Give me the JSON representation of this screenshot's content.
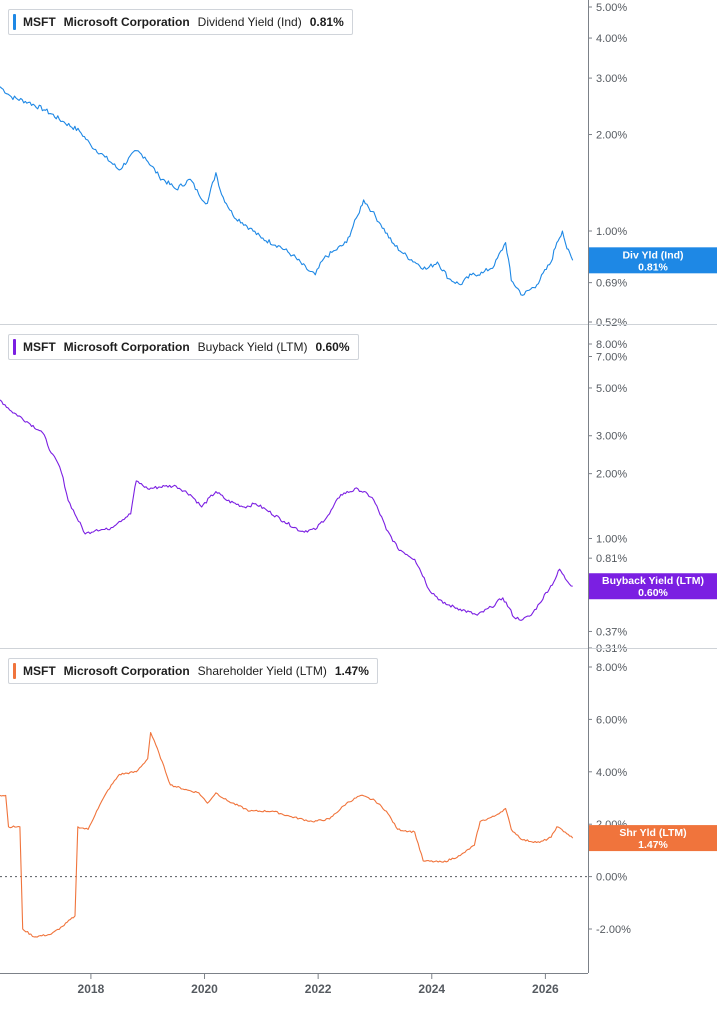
{
  "colors": {
    "dividend": "#1e88e5",
    "buyback": "#7b1fe2",
    "shareholder": "#f0743c",
    "axis": "#7c8188",
    "divider": "#cfd3d8",
    "zero_line": "#555a60"
  },
  "x_axis": {
    "ticks": [
      "2018",
      "2020",
      "2022",
      "2024",
      "2026"
    ],
    "range": [
      2016.4,
      2026.75
    ]
  },
  "chart_data": [
    {
      "type": "line",
      "legend": {
        "ticker": "MSFT",
        "company": "Microsoft Corporation",
        "metric": "Dividend Yield (Ind)",
        "value": "0.81%"
      },
      "tag": {
        "label": "Div Yld (Ind)",
        "value": "0.81%",
        "level": 0.81
      },
      "scale": "log",
      "ylim": [
        0.52,
        5.0
      ],
      "yticks": [
        "5.00%",
        "4.00%",
        "3.00%",
        "2.00%",
        "1.00%",
        "0.69%",
        "0.52%"
      ],
      "ytick_values": [
        5.0,
        4.0,
        3.0,
        2.0,
        1.0,
        0.69,
        0.52
      ],
      "series": [
        {
          "points": [
            [
              2016.4,
              2.82
            ],
            [
              2016.6,
              2.62
            ],
            [
              2016.9,
              2.52
            ],
            [
              2017.2,
              2.38
            ],
            [
              2017.5,
              2.2
            ],
            [
              2017.8,
              2.05
            ],
            [
              2018.0,
              1.85
            ],
            [
              2018.25,
              1.7
            ],
            [
              2018.5,
              1.55
            ],
            [
              2018.8,
              1.78
            ],
            [
              2018.95,
              1.7
            ],
            [
              2019.2,
              1.48
            ],
            [
              2019.5,
              1.35
            ],
            [
              2019.75,
              1.45
            ],
            [
              2019.9,
              1.3
            ],
            [
              2020.05,
              1.22
            ],
            [
              2020.2,
              1.52
            ],
            [
              2020.3,
              1.3
            ],
            [
              2020.5,
              1.12
            ],
            [
              2020.8,
              1.02
            ],
            [
              2021.0,
              0.95
            ],
            [
              2021.3,
              0.9
            ],
            [
              2021.55,
              0.84
            ],
            [
              2021.8,
              0.76
            ],
            [
              2021.95,
              0.73
            ],
            [
              2022.1,
              0.82
            ],
            [
              2022.3,
              0.87
            ],
            [
              2022.5,
              0.92
            ],
            [
              2022.7,
              1.12
            ],
            [
              2022.8,
              1.25
            ],
            [
              2022.95,
              1.15
            ],
            [
              2023.1,
              1.05
            ],
            [
              2023.3,
              0.92
            ],
            [
              2023.5,
              0.85
            ],
            [
              2023.7,
              0.8
            ],
            [
              2023.9,
              0.76
            ],
            [
              2024.1,
              0.8
            ],
            [
              2024.3,
              0.71
            ],
            [
              2024.5,
              0.68
            ],
            [
              2024.7,
              0.73
            ],
            [
              2024.9,
              0.74
            ],
            [
              2025.1,
              0.78
            ],
            [
              2025.3,
              0.92
            ],
            [
              2025.4,
              0.7
            ],
            [
              2025.6,
              0.63
            ],
            [
              2025.85,
              0.68
            ],
            [
              2026.1,
              0.8
            ],
            [
              2026.2,
              0.92
            ],
            [
              2026.3,
              1.0
            ],
            [
              2026.38,
              0.88
            ],
            [
              2026.48,
              0.81
            ]
          ]
        }
      ]
    },
    {
      "type": "line",
      "legend": {
        "ticker": "MSFT",
        "company": "Microsoft Corporation",
        "metric": "Buyback Yield (LTM)",
        "value": "0.60%"
      },
      "tag": {
        "label": "Buyback Yield (LTM)",
        "value": "0.60%",
        "level": 0.6
      },
      "scale": "log",
      "ylim": [
        0.31,
        8.0
      ],
      "yticks": [
        "8.00%",
        "7.00%",
        "5.00%",
        "3.00%",
        "2.00%",
        "1.00%",
        "0.81%",
        "0.37%",
        "0.31%"
      ],
      "ytick_values": [
        8.0,
        7.0,
        5.0,
        3.0,
        2.0,
        1.0,
        0.81,
        0.37,
        0.31
      ],
      "series": [
        {
          "points": [
            [
              2016.4,
              4.4
            ],
            [
              2016.6,
              3.9
            ],
            [
              2016.9,
              3.45
            ],
            [
              2017.15,
              3.1
            ],
            [
              2017.3,
              2.5
            ],
            [
              2017.45,
              2.15
            ],
            [
              2017.6,
              1.5
            ],
            [
              2017.75,
              1.25
            ],
            [
              2017.9,
              1.05
            ],
            [
              2018.1,
              1.1
            ],
            [
              2018.3,
              1.1
            ],
            [
              2018.5,
              1.2
            ],
            [
              2018.7,
              1.3
            ],
            [
              2018.8,
              1.85
            ],
            [
              2019.0,
              1.7
            ],
            [
              2019.3,
              1.75
            ],
            [
              2019.5,
              1.75
            ],
            [
              2019.75,
              1.6
            ],
            [
              2019.95,
              1.4
            ],
            [
              2020.2,
              1.65
            ],
            [
              2020.4,
              1.5
            ],
            [
              2020.7,
              1.4
            ],
            [
              2020.9,
              1.45
            ],
            [
              2021.1,
              1.35
            ],
            [
              2021.4,
              1.2
            ],
            [
              2021.7,
              1.08
            ],
            [
              2021.95,
              1.1
            ],
            [
              2022.2,
              1.3
            ],
            [
              2022.4,
              1.6
            ],
            [
              2022.7,
              1.7
            ],
            [
              2022.95,
              1.55
            ],
            [
              2023.2,
              1.1
            ],
            [
              2023.4,
              0.9
            ],
            [
              2023.7,
              0.8
            ],
            [
              2023.95,
              0.58
            ],
            [
              2024.2,
              0.5
            ],
            [
              2024.5,
              0.47
            ],
            [
              2024.8,
              0.44
            ],
            [
              2025.05,
              0.48
            ],
            [
              2025.25,
              0.53
            ],
            [
              2025.45,
              0.43
            ],
            [
              2025.6,
              0.42
            ],
            [
              2025.75,
              0.44
            ],
            [
              2025.9,
              0.5
            ],
            [
              2026.15,
              0.63
            ],
            [
              2026.25,
              0.72
            ],
            [
              2026.35,
              0.65
            ],
            [
              2026.48,
              0.6
            ]
          ]
        }
      ]
    },
    {
      "type": "line",
      "legend": {
        "ticker": "MSFT",
        "company": "Microsoft Corporation",
        "metric": "Shareholder Yield (LTM)",
        "value": "1.47%"
      },
      "tag": {
        "label": "Shr Yld (LTM)",
        "value": "1.47%",
        "level": 1.47
      },
      "scale": "linear",
      "ylim": [
        -3.6,
        8.6
      ],
      "yticks": [
        "8.00%",
        "6.00%",
        "4.00%",
        "2.00%",
        "0.00%",
        "-2.00%"
      ],
      "ytick_values": [
        8.0,
        6.0,
        4.0,
        2.0,
        0.0,
        -2.0
      ],
      "zero_line": true,
      "series": [
        {
          "points": [
            [
              2016.4,
              3.1
            ],
            [
              2016.5,
              3.1
            ],
            [
              2016.55,
              1.9
            ],
            [
              2016.75,
              1.9
            ],
            [
              2016.8,
              -2.0
            ],
            [
              2017.0,
              -2.3
            ],
            [
              2017.3,
              -2.2
            ],
            [
              2017.5,
              -1.9
            ],
            [
              2017.72,
              -1.5
            ],
            [
              2017.77,
              1.9
            ],
            [
              2017.95,
              1.8
            ],
            [
              2018.1,
              2.5
            ],
            [
              2018.3,
              3.3
            ],
            [
              2018.5,
              3.9
            ],
            [
              2018.8,
              4.0
            ],
            [
              2019.0,
              4.5
            ],
            [
              2019.05,
              5.5
            ],
            [
              2019.2,
              4.7
            ],
            [
              2019.4,
              3.5
            ],
            [
              2019.7,
              3.3
            ],
            [
              2019.9,
              3.2
            ],
            [
              2020.05,
              2.8
            ],
            [
              2020.2,
              3.2
            ],
            [
              2020.4,
              2.9
            ],
            [
              2020.8,
              2.5
            ],
            [
              2021.2,
              2.5
            ],
            [
              2021.5,
              2.3
            ],
            [
              2021.9,
              2.1
            ],
            [
              2022.2,
              2.2
            ],
            [
              2022.5,
              2.8
            ],
            [
              2022.75,
              3.1
            ],
            [
              2023.0,
              2.9
            ],
            [
              2023.2,
              2.5
            ],
            [
              2023.4,
              1.8
            ],
            [
              2023.7,
              1.7
            ],
            [
              2023.85,
              0.6
            ],
            [
              2024.2,
              0.55
            ],
            [
              2024.5,
              0.8
            ],
            [
              2024.75,
              1.2
            ],
            [
              2024.85,
              2.1
            ],
            [
              2025.1,
              2.3
            ],
            [
              2025.3,
              2.6
            ],
            [
              2025.4,
              1.8
            ],
            [
              2025.6,
              1.4
            ],
            [
              2025.9,
              1.3
            ],
            [
              2026.1,
              1.5
            ],
            [
              2026.2,
              1.9
            ],
            [
              2026.35,
              1.7
            ],
            [
              2026.48,
              1.47
            ]
          ]
        }
      ]
    }
  ]
}
